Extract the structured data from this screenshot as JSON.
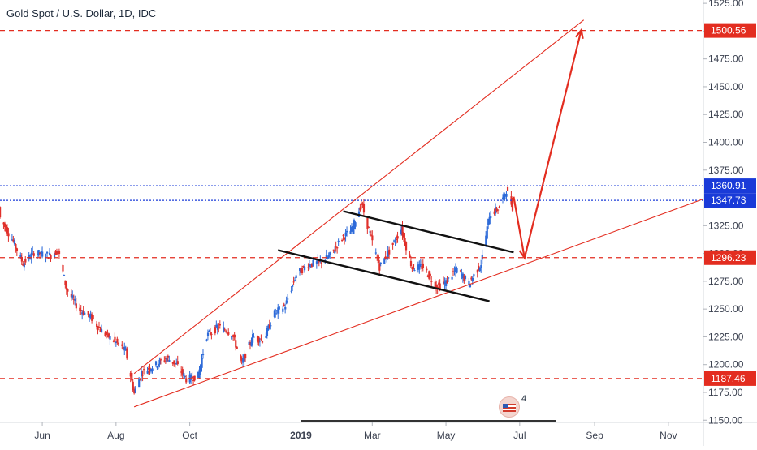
{
  "header": {
    "title": "Gold Spot / U.S. Dollar, 1D, IDC"
  },
  "events": {
    "count": "4"
  },
  "colors": {
    "up": "#2e6bd9",
    "down": "#e0302b",
    "drawing": "#e32d20",
    "blue_level": "#1a3bd8",
    "channel": "#111111",
    "axis_text": "#3b4150",
    "grid_rule": "#333333"
  },
  "chart_data": {
    "type": "candlestick",
    "title": "Gold Spot / U.S. Dollar, 1D, IDC",
    "xlabel": "",
    "ylabel": "",
    "x_range": [
      "2018-04-27",
      "2019-11-30"
    ],
    "ylim": [
      1148,
      1528
    ],
    "x_tick_labels": [
      {
        "label": "Jun",
        "date": "2018-06-01"
      },
      {
        "label": "Aug",
        "date": "2018-08-01"
      },
      {
        "label": "Oct",
        "date": "2018-10-01"
      },
      {
        "label": "2019",
        "date": "2019-01-01",
        "bold": true
      },
      {
        "label": "Mar",
        "date": "2019-03-01"
      },
      {
        "label": "May",
        "date": "2019-05-01"
      },
      {
        "label": "Jul",
        "date": "2019-07-01"
      },
      {
        "label": "Sep",
        "date": "2019-09-01"
      },
      {
        "label": "Nov",
        "date": "2019-11-01"
      }
    ],
    "y_tick_labels": [
      "1525.00",
      "1500.00",
      "1475.00",
      "1450.00",
      "1425.00",
      "1400.00",
      "1375.00",
      "1325.00",
      "1300.00",
      "1275.00",
      "1250.00",
      "1225.00",
      "1200.00",
      "1175.00",
      "1150.00"
    ],
    "y_tick_values": [
      1525,
      1500,
      1475,
      1450,
      1425,
      1400,
      1375,
      1325,
      1300,
      1275,
      1250,
      1225,
      1200,
      1175,
      1150
    ],
    "price_path": [
      [
        "2018-04-27",
        1332
      ],
      [
        "2018-05-07",
        1313
      ],
      [
        "2018-05-16",
        1291
      ],
      [
        "2018-05-25",
        1301
      ],
      [
        "2018-06-08",
        1298
      ],
      [
        "2018-06-14",
        1303
      ],
      [
        "2018-06-21",
        1268
      ],
      [
        "2018-07-01",
        1250
      ],
      [
        "2018-07-11",
        1243
      ],
      [
        "2018-07-20",
        1230
      ],
      [
        "2018-07-31",
        1221
      ],
      [
        "2018-08-09",
        1212
      ],
      [
        "2018-08-16",
        1174
      ],
      [
        "2018-08-22",
        1193
      ],
      [
        "2018-09-03",
        1200
      ],
      [
        "2018-09-12",
        1206
      ],
      [
        "2018-09-20",
        1200
      ],
      [
        "2018-09-28",
        1187
      ],
      [
        "2018-10-08",
        1190
      ],
      [
        "2018-10-15",
        1226
      ],
      [
        "2018-10-25",
        1234
      ],
      [
        "2018-11-05",
        1228
      ],
      [
        "2018-11-13",
        1201
      ],
      [
        "2018-11-22",
        1225
      ],
      [
        "2018-12-01",
        1222
      ],
      [
        "2018-12-10",
        1246
      ],
      [
        "2018-12-19",
        1253
      ],
      [
        "2018-12-28",
        1281
      ],
      [
        "2019-01-07",
        1290
      ],
      [
        "2019-01-17",
        1292
      ],
      [
        "2019-01-25",
        1298
      ],
      [
        "2019-02-04",
        1314
      ],
      [
        "2019-02-12",
        1321
      ],
      [
        "2019-02-20",
        1345
      ],
      [
        "2019-02-28",
        1314
      ],
      [
        "2019-03-07",
        1288
      ],
      [
        "2019-03-15",
        1302
      ],
      [
        "2019-03-25",
        1322
      ],
      [
        "2019-04-03",
        1287
      ],
      [
        "2019-04-12",
        1288
      ],
      [
        "2019-04-23",
        1270
      ],
      [
        "2019-05-01",
        1274
      ],
      [
        "2019-05-10",
        1286
      ],
      [
        "2019-05-20",
        1273
      ],
      [
        "2019-05-30",
        1291
      ],
      [
        "2019-06-06",
        1335
      ],
      [
        "2019-06-14",
        1341
      ],
      [
        "2019-06-20",
        1357
      ],
      [
        "2019-06-25",
        1342
      ]
    ],
    "annotations": {
      "horizontal_levels": [
        {
          "value": 1500.56,
          "label": "1500.56",
          "style": "dashed",
          "color": "#e32d20"
        },
        {
          "value": 1360.91,
          "label": "1360.91",
          "style": "dotted",
          "color": "#1a3bd8"
        },
        {
          "value": 1347.73,
          "label": "1347.73",
          "style": "dotted",
          "color": "#1a3bd8"
        },
        {
          "value": 1296.23,
          "label": "1296.23",
          "style": "dashed",
          "color": "#e32d20"
        },
        {
          "value": 1187.46,
          "label": "1187.46",
          "style": "dashed",
          "color": "#e32d20"
        }
      ],
      "trend_lines": [
        {
          "name": "upper-wedge",
          "color": "#e32d20",
          "from": [
            "2018-08-16",
            1192
          ],
          "to": [
            "2019-08-23",
            1510
          ]
        },
        {
          "name": "lower-support",
          "color": "#e32d20",
          "from": [
            "2018-08-16",
            1162
          ],
          "to": [
            "2019-11-30",
            1349
          ]
        }
      ],
      "channel_lines": [
        {
          "name": "channel-top",
          "color": "#111111",
          "from": [
            "2019-02-05",
            1338
          ],
          "to": [
            "2019-06-26",
            1301
          ]
        },
        {
          "name": "channel-bottom",
          "color": "#111111",
          "from": [
            "2018-12-13",
            1303
          ],
          "to": [
            "2019-06-06",
            1257
          ]
        }
      ],
      "projection_arrows": [
        {
          "name": "pullback-arrow",
          "color": "#e32d20",
          "from": [
            "2019-06-26",
            1351
          ],
          "to": [
            "2019-07-05",
            1296
          ]
        },
        {
          "name": "target-arrow",
          "color": "#e32d20",
          "from": [
            "2019-07-05",
            1296
          ],
          "to": [
            "2019-08-21",
            1501
          ]
        }
      ]
    }
  }
}
